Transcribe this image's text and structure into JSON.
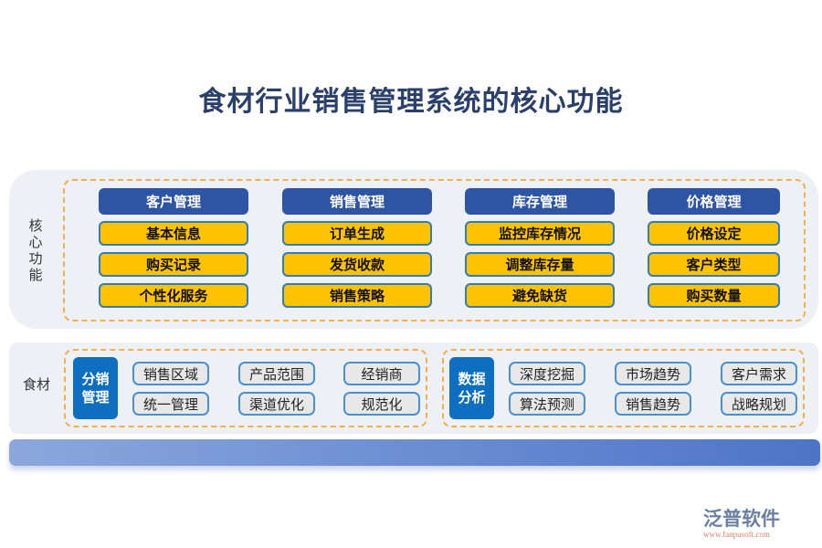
{
  "title": "食材行业销售管理系统的核心功能",
  "core": {
    "label": "核心功能",
    "columns": [
      {
        "header": "客户管理",
        "items": [
          "基本信息",
          "购买记录",
          "个性化服务"
        ]
      },
      {
        "header": "销售管理",
        "items": [
          "订单生成",
          "发货收款",
          "销售策略"
        ]
      },
      {
        "header": "库存管理",
        "items": [
          "监控库存情况",
          "调整库存量",
          "避免缺货"
        ]
      },
      {
        "header": "价格管理",
        "items": [
          "价格设定",
          "客户类型",
          "购买数量"
        ]
      }
    ]
  },
  "food": {
    "label": "食材",
    "groups": [
      {
        "title": "分销管理",
        "items": [
          "销售区域",
          "产品范围",
          "经销商",
          "统一管理",
          "渠道优化",
          "规范化"
        ]
      },
      {
        "title": "数据分析",
        "items": [
          "深度挖掘",
          "市场趋势",
          "客户需求",
          "算法预测",
          "销售趋势",
          "战略规划"
        ]
      }
    ]
  },
  "logo": {
    "name": "泛普软件",
    "url": "www.fanpusoft.com"
  }
}
